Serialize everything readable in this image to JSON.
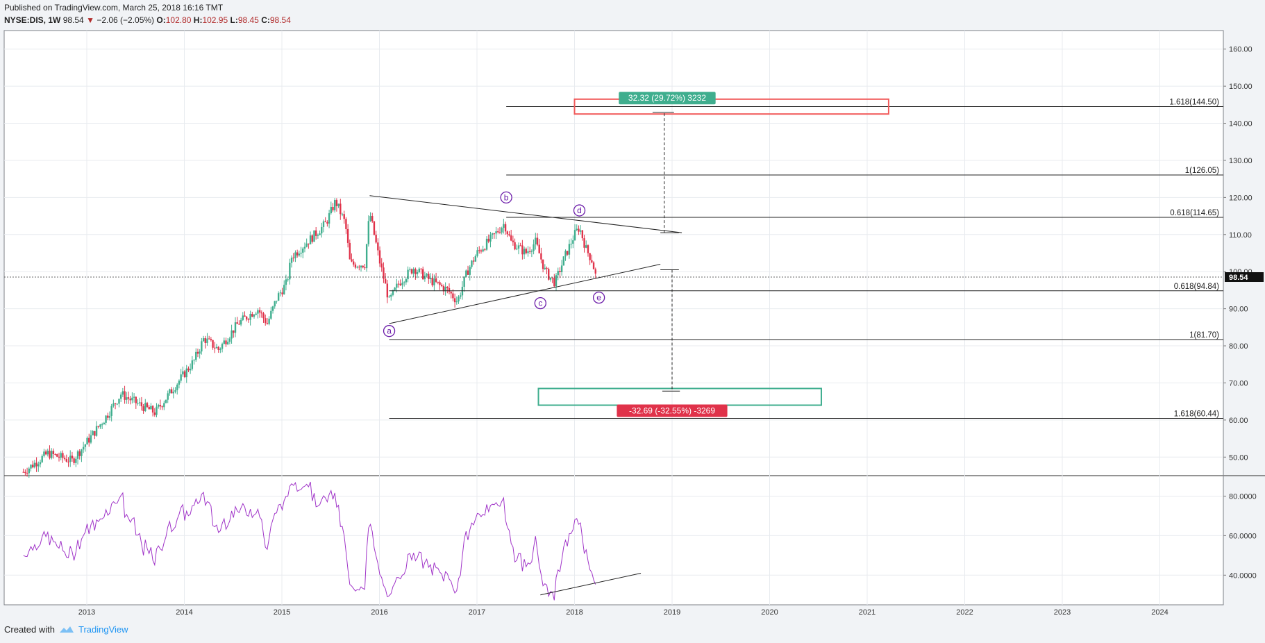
{
  "header": {
    "published": "Published on TradingView.com, March 25, 2018 16:16 TMT",
    "symbol": "NYSE:DIS, 1W",
    "last": "98.54",
    "change": "−2.06 (−2.05%)",
    "o_label": "O:",
    "o_value": "102.80",
    "h_label": "H:",
    "h_value": "102.95",
    "l_label": "L:",
    "l_value": "98.45",
    "c_label": "C:",
    "c_value": "98.54"
  },
  "footer": {
    "created": "Created with",
    "brand": "TradingView"
  },
  "colors": {
    "up": "#3fae8e",
    "down": "#e0324a",
    "rsi": "#a034c8",
    "wave": "#6a1aa8",
    "grid": "#e8ebef"
  },
  "chart_data": [
    {
      "type": "candlestick",
      "x_labels": [
        "2013",
        "2014",
        "2015",
        "2016",
        "2017",
        "2018",
        "2019",
        "2020",
        "2021",
        "2022",
        "2023",
        "2024"
      ],
      "y_ticks": [
        "160.00",
        "150.00",
        "140.00",
        "130.00",
        "120.00",
        "110.00",
        "100.00",
        "90.00",
        "80.00",
        "70.00",
        "60.00",
        "50.00"
      ],
      "ylim": [
        45,
        165
      ],
      "last_price": "98.54",
      "close_series": [
        {
          "t": 2012.35,
          "v": 46
        },
        {
          "t": 2012.6,
          "v": 51
        },
        {
          "t": 2012.85,
          "v": 49
        },
        {
          "t": 2013.0,
          "v": 54
        },
        {
          "t": 2013.2,
          "v": 61
        },
        {
          "t": 2013.35,
          "v": 67
        },
        {
          "t": 2013.55,
          "v": 64
        },
        {
          "t": 2013.7,
          "v": 62
        },
        {
          "t": 2013.9,
          "v": 69
        },
        {
          "t": 2014.1,
          "v": 76
        },
        {
          "t": 2014.2,
          "v": 82
        },
        {
          "t": 2014.35,
          "v": 79
        },
        {
          "t": 2014.55,
          "v": 86
        },
        {
          "t": 2014.75,
          "v": 90
        },
        {
          "t": 2014.85,
          "v": 86
        },
        {
          "t": 2014.95,
          "v": 93
        },
        {
          "t": 2015.05,
          "v": 97
        },
        {
          "t": 2015.1,
          "v": 104
        },
        {
          "t": 2015.3,
          "v": 109
        },
        {
          "t": 2015.45,
          "v": 113
        },
        {
          "t": 2015.55,
          "v": 119
        },
        {
          "t": 2015.65,
          "v": 113
        },
        {
          "t": 2015.7,
          "v": 102
        },
        {
          "t": 2015.85,
          "v": 102
        },
        {
          "t": 2015.9,
          "v": 116
        },
        {
          "t": 2016.0,
          "v": 103
        },
        {
          "t": 2016.1,
          "v": 92
        },
        {
          "t": 2016.2,
          "v": 97
        },
        {
          "t": 2016.35,
          "v": 101
        },
        {
          "t": 2016.5,
          "v": 98
        },
        {
          "t": 2016.7,
          "v": 95
        },
        {
          "t": 2016.8,
          "v": 92
        },
        {
          "t": 2016.9,
          "v": 100
        },
        {
          "t": 2017.0,
          "v": 105
        },
        {
          "t": 2017.15,
          "v": 109
        },
        {
          "t": 2017.28,
          "v": 113
        },
        {
          "t": 2017.35,
          "v": 108
        },
        {
          "t": 2017.5,
          "v": 105
        },
        {
          "t": 2017.6,
          "v": 108
        },
        {
          "t": 2017.7,
          "v": 100
        },
        {
          "t": 2017.8,
          "v": 97
        },
        {
          "t": 2017.9,
          "v": 104
        },
        {
          "t": 2018.0,
          "v": 110
        },
        {
          "t": 2018.05,
          "v": 112
        },
        {
          "t": 2018.12,
          "v": 106
        },
        {
          "t": 2018.18,
          "v": 103
        },
        {
          "t": 2018.22,
          "v": 98.5
        }
      ],
      "fib_levels": [
        {
          "label": "1.618(144.50)",
          "value": 144.5,
          "x_from": 2017.3
        },
        {
          "label": "1(126.05)",
          "value": 126.05,
          "x_from": 2017.3
        },
        {
          "label": "0.618(114.65)",
          "value": 114.65,
          "x_from": 2017.3
        },
        {
          "label": "0.618(94.84)",
          "value": 94.84,
          "x_from": 2016.1
        },
        {
          "label": "1(81.70)",
          "value": 81.7,
          "x_from": 2016.1
        },
        {
          "label": "1.618(60.44)",
          "value": 60.44,
          "x_from": 2016.1
        }
      ],
      "wave_labels": [
        {
          "label": "a",
          "t": 2016.1,
          "v": 84
        },
        {
          "label": "b",
          "t": 2017.3,
          "v": 120
        },
        {
          "label": "c",
          "t": 2017.65,
          "v": 91.5
        },
        {
          "label": "d",
          "t": 2018.05,
          "v": 116.5
        },
        {
          "label": "e",
          "t": 2018.25,
          "v": 93
        }
      ],
      "target_up": {
        "label": "32.32 (29.72%) 3232",
        "value": 144.5
      },
      "target_down": {
        "label": "-32.69 (-32.55%) -3269",
        "value": 67.5
      }
    },
    {
      "type": "line",
      "series": [
        {
          "name": "",
          "values": []
        }
      ],
      "y_ticks": [
        "80.0000",
        "60.0000",
        "40.0000"
      ],
      "ylim": [
        25,
        90
      ]
    }
  ]
}
